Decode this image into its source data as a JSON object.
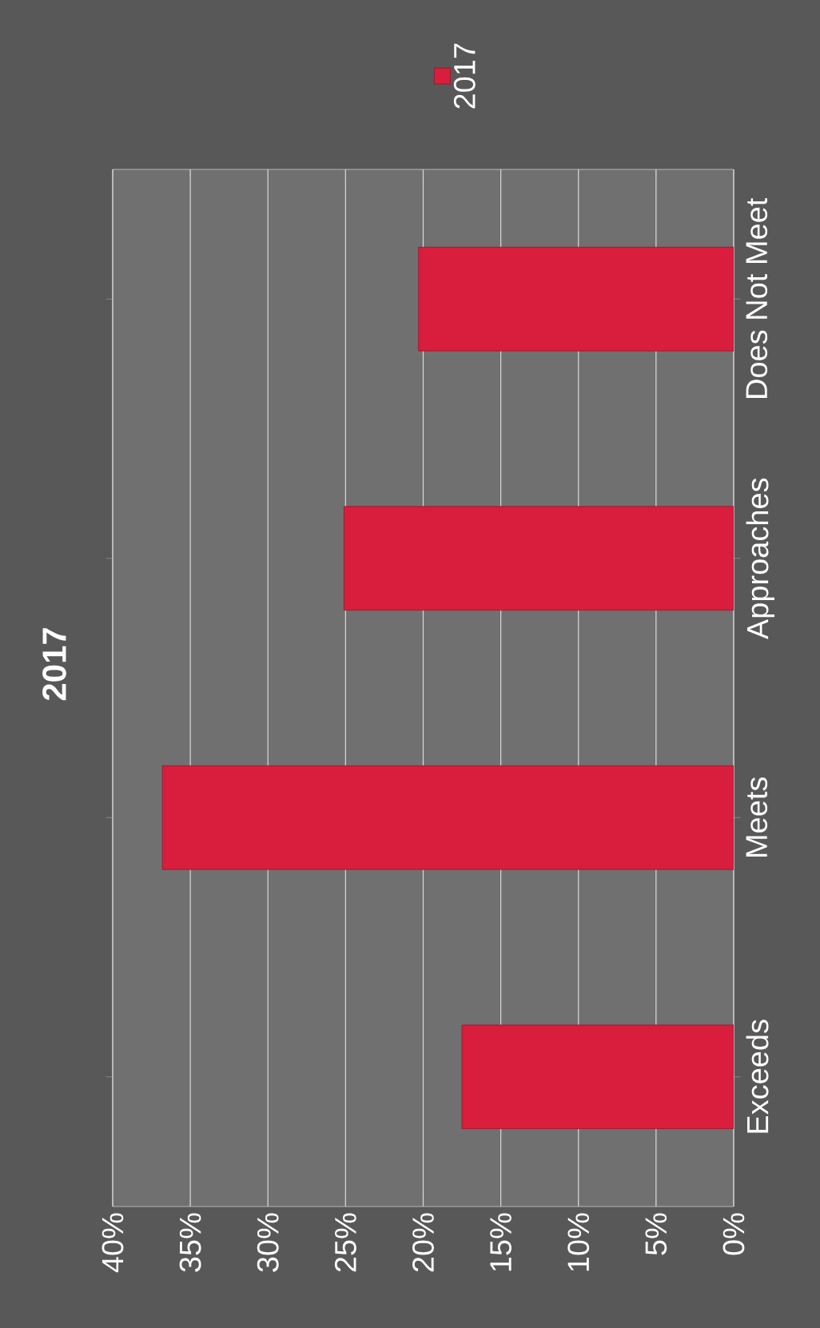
{
  "chart_data": {
    "type": "bar",
    "orientation": "horizontal",
    "title": "2017",
    "categories": [
      "Does Not Meet",
      "Approaches",
      "Meets",
      "Exceeds"
    ],
    "series": [
      {
        "name": "2017",
        "color": "#d81e3c",
        "values": [
          20.3,
          25.1,
          36.8,
          17.5
        ]
      }
    ],
    "xlim": [
      40,
      0
    ],
    "xticks": [
      {
        "value": 0,
        "label": "0%"
      },
      {
        "value": 5,
        "label": "5%"
      },
      {
        "value": 10,
        "label": "10%"
      },
      {
        "value": 15,
        "label": "15%"
      },
      {
        "value": 20,
        "label": "20%"
      },
      {
        "value": 25,
        "label": "25%"
      },
      {
        "value": 30,
        "label": "30%"
      },
      {
        "value": 35,
        "label": "35%"
      },
      {
        "value": 40,
        "label": "40%"
      }
    ],
    "grid": "x",
    "legend": "top"
  }
}
